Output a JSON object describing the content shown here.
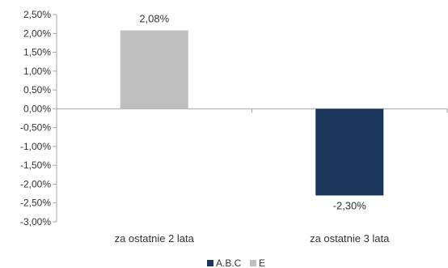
{
  "chart_data": {
    "type": "bar",
    "categories": [
      "za ostatnie 2 lata",
      "za ostatnie 3 lata"
    ],
    "series": [
      {
        "name": "A.B.C",
        "values": [
          null,
          -2.3
        ]
      },
      {
        "name": "E",
        "values": [
          2.08,
          null
        ]
      }
    ],
    "data_labels": [
      "2,08%",
      "-2,30%"
    ],
    "ylim": [
      -3.0,
      2.5
    ],
    "yticks": [
      2.5,
      2.0,
      1.5,
      1.0,
      0.5,
      0.0,
      -0.5,
      -1.0,
      -1.5,
      -2.0,
      -2.5,
      -3.0
    ],
    "ytick_labels": [
      "2,50%",
      "2,00%",
      "1,50%",
      "1,00%",
      "0,50%",
      "0,00%",
      "-0,50%",
      "-1,00%",
      "-1,50%",
      "-2,00%",
      "-2,50%",
      "-3,00%"
    ],
    "grid": false,
    "legend_position": "bottom",
    "colors": {
      "A.B.C": "#1b365d",
      "E": "#bfbfbf",
      "axis": "#a6a6a6"
    }
  }
}
